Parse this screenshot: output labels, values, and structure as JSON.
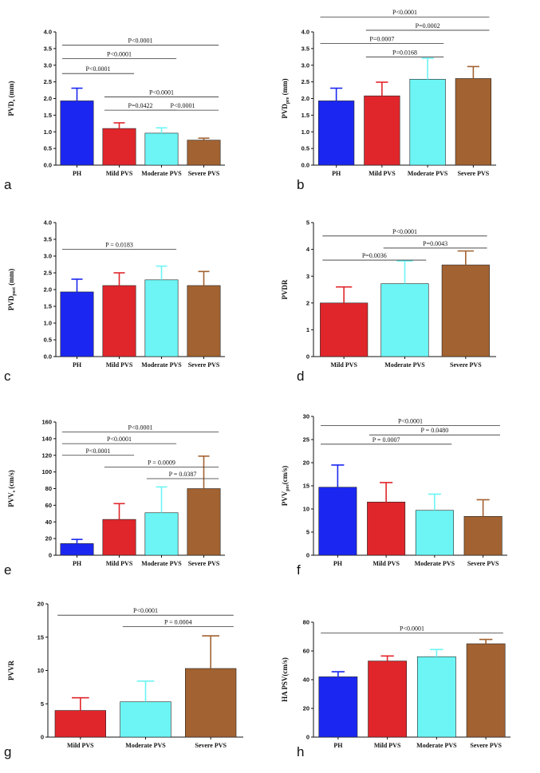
{
  "colors": {
    "PH": "#1b27f0",
    "Mild PVS": "#e0262b",
    "Moderate PVS": "#6cf5f4",
    "Severe PVS": "#a26231"
  },
  "chart_data": [
    {
      "id": "a",
      "panel_label": "a",
      "type": "bar",
      "ylabel": "PVD",
      "ylabel_sub": "s",
      "ylabel_unit": " (mm)",
      "categories": [
        "PH",
        "Mild PVS",
        "Moderate PVS",
        "Severe PVS"
      ],
      "values": [
        1.93,
        1.1,
        0.96,
        0.75
      ],
      "errors": [
        0.38,
        0.17,
        0.16,
        0.06
      ],
      "ylim": [
        0,
        4.0
      ],
      "yticks": [
        "0.0",
        "0.5",
        "1.0",
        "1.5",
        "2.0",
        "2.5",
        "3.0",
        "3.5",
        "4.0"
      ],
      "comparisons": [
        {
          "from": 0,
          "to": 3,
          "level": 3.6,
          "text": "P<0.0001"
        },
        {
          "from": 0,
          "to": 2,
          "level": 3.2,
          "text": "P<0.0001"
        },
        {
          "from": 0,
          "to": 1,
          "level": 2.75,
          "text": "P<0.0001"
        },
        {
          "from": 1,
          "to": 3,
          "level": 2.05,
          "text": "P<0.0001"
        },
        {
          "from": 1,
          "to": 2,
          "level": 1.65,
          "text": "P=0.0422"
        },
        {
          "from": 2,
          "to": 3,
          "level": 1.65,
          "text": "P<0.0001"
        }
      ]
    },
    {
      "id": "b",
      "panel_label": "b",
      "type": "bar",
      "ylabel": "PVD",
      "ylabel_sub": "pre",
      "ylabel_unit": " (mm)",
      "categories": [
        "PH",
        "Mild PVS",
        "Moderate PVS",
        "Severe PVS"
      ],
      "values": [
        1.93,
        2.08,
        2.58,
        2.6
      ],
      "errors": [
        0.38,
        0.41,
        0.63,
        0.36
      ],
      "ylim": [
        0,
        4.0
      ],
      "yticks": [
        "0.0",
        "0.5",
        "1.0",
        "1.5",
        "2.0",
        "2.5",
        "3.0",
        "3.5",
        "4.0"
      ],
      "comparisons": [
        {
          "from": 0,
          "to": 3,
          "level": 4.45,
          "text": "P<0.0001"
        },
        {
          "from": 1,
          "to": 3,
          "level": 4.05,
          "text": "P=0.0002"
        },
        {
          "from": 0,
          "to": 2,
          "level": 3.65,
          "text": "P=0.0007"
        },
        {
          "from": 1,
          "to": 2,
          "level": 3.25,
          "text": "P=0.0168"
        }
      ]
    },
    {
      "id": "c",
      "panel_label": "c",
      "type": "bar",
      "ylabel": "PVD",
      "ylabel_sub": "post",
      "ylabel_unit": " (mm)",
      "categories": [
        "PH",
        "Mild PVS",
        "Moderate PVS",
        "Severe PVS"
      ],
      "values": [
        1.93,
        2.12,
        2.29,
        2.12
      ],
      "errors": [
        0.38,
        0.38,
        0.41,
        0.42
      ],
      "ylim": [
        0,
        4.0
      ],
      "yticks": [
        "0.0",
        "0.5",
        "1.0",
        "1.5",
        "2.0",
        "2.5",
        "3.0",
        "3.5",
        "4.0"
      ],
      "comparisons": [
        {
          "from": 0,
          "to": 2,
          "level": 3.2,
          "text": "P = 0.0183"
        }
      ]
    },
    {
      "id": "d",
      "panel_label": "d",
      "type": "bar",
      "ylabel": "PVDR",
      "ylabel_sub": "",
      "ylabel_unit": "",
      "categories": [
        "Mild PVS",
        "Moderate PVS",
        "Severe PVS"
      ],
      "values": [
        2.0,
        2.72,
        3.42
      ],
      "errors": [
        0.6,
        0.85,
        0.52
      ],
      "ylim": [
        0,
        5
      ],
      "yticks": [
        "0",
        "1",
        "2",
        "3",
        "4",
        "5"
      ],
      "comparisons": [
        {
          "from": 0,
          "to": 2,
          "level": 4.5,
          "text": "P<0.0001"
        },
        {
          "from": 1,
          "to": 2,
          "level": 4.05,
          "text": "P=0.0043"
        },
        {
          "from": 0,
          "to": 1,
          "level": 3.6,
          "text": "P=0.0036"
        }
      ]
    },
    {
      "id": "e",
      "panel_label": "e",
      "type": "bar",
      "ylabel": "PVV",
      "ylabel_sub": "s",
      "ylabel_unit": " (cm/s)",
      "categories": [
        "PH",
        "Mild PVS",
        "Moderate PVS",
        "Severe PVS"
      ],
      "values": [
        14,
        43,
        51,
        80
      ],
      "errors": [
        5,
        19,
        31,
        39
      ],
      "ylim": [
        0,
        160
      ],
      "yticks": [
        "0",
        "20",
        "40",
        "60",
        "80",
        "100",
        "120",
        "140",
        "160"
      ],
      "comparisons": [
        {
          "from": 0,
          "to": 3,
          "level": 148,
          "text": "P<0.0001"
        },
        {
          "from": 0,
          "to": 2,
          "level": 134,
          "text": "P<0.0001"
        },
        {
          "from": 0,
          "to": 1,
          "level": 120,
          "text": "P<0.0001"
        },
        {
          "from": 1,
          "to": 3,
          "level": 106,
          "text": "P = 0.0009"
        },
        {
          "from": 2,
          "to": 3,
          "level": 92,
          "text": "P = 0.0387"
        }
      ]
    },
    {
      "id": "f",
      "panel_label": "f",
      "type": "bar",
      "ylabel": "PVV",
      "ylabel_sub": "pre",
      "ylabel_unit": "(cm/s)",
      "categories": [
        "PH",
        "Mild PVS",
        "Moderate PVS",
        "Severe PVS"
      ],
      "values": [
        14.7,
        11.5,
        9.7,
        8.4
      ],
      "errors": [
        4.8,
        4.2,
        3.5,
        3.6
      ],
      "ylim": [
        0,
        30
      ],
      "yticks": [
        "0",
        "5",
        "10",
        "15",
        "20",
        "25",
        "30"
      ],
      "comparisons": [
        {
          "from": 0,
          "to": 3,
          "level": 28,
          "text": "P<0.0001"
        },
        {
          "from": 1,
          "to": 3,
          "level": 26,
          "text": "P = 0.0480"
        },
        {
          "from": 0,
          "to": 2,
          "level": 24,
          "text": "P = 0.0007"
        }
      ]
    },
    {
      "id": "g",
      "panel_label": "g",
      "type": "bar",
      "ylabel": "PVVR",
      "ylabel_sub": "",
      "ylabel_unit": "",
      "categories": [
        "Mild PVS",
        "Moderate PVS",
        "Severe PVS"
      ],
      "values": [
        4.0,
        5.3,
        10.3
      ],
      "errors": [
        1.9,
        3.1,
        4.9
      ],
      "ylim": [
        0,
        20
      ],
      "yticks": [
        "0",
        "5",
        "10",
        "15",
        "20"
      ],
      "comparisons": [
        {
          "from": 0,
          "to": 2,
          "level": 18.3,
          "text": "P<0.0001"
        },
        {
          "from": 1,
          "to": 2,
          "level": 16.6,
          "text": "P = 0.0004"
        }
      ]
    },
    {
      "id": "h",
      "panel_label": "h",
      "type": "bar",
      "ylabel": "HA PSV(cm/s)",
      "ylabel_sub": "",
      "ylabel_unit": "",
      "categories": [
        "PH",
        "Mild PVS",
        "Moderate PVS",
        "Severe PVS"
      ],
      "values": [
        42,
        53,
        56,
        65
      ],
      "errors": [
        3.5,
        3.5,
        5,
        3
      ],
      "ylim": [
        0,
        80
      ],
      "yticks": [
        "0",
        "20",
        "40",
        "60",
        "80"
      ],
      "comparisons": [
        {
          "from": 0,
          "to": 3,
          "level": 72.5,
          "text": "P<0.0001"
        }
      ]
    }
  ]
}
